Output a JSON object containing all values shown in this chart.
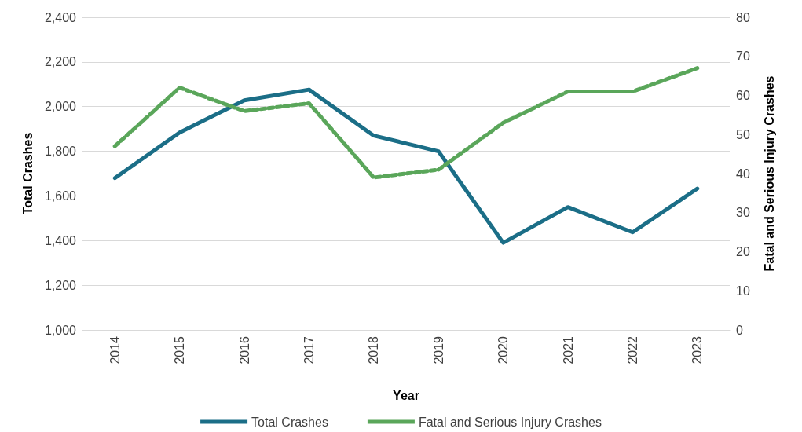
{
  "chart_data": {
    "type": "line",
    "xlabel": "Year",
    "ylabel": "Total Crashes",
    "y2label": "Fatal and Serious Injury Crashes",
    "categories": [
      "2014",
      "2015",
      "2016",
      "2017",
      "2018",
      "2019",
      "2020",
      "2021",
      "2022",
      "2023"
    ],
    "series": [
      {
        "name": "Total Crashes",
        "color": "#1b6e87",
        "line_style": "solid",
        "values": [
          1680,
          1884,
          2028,
          2076,
          1870,
          1800,
          1390,
          1550,
          1437,
          1633
        ]
      },
      {
        "name": "Fatal and Serious Injury Crashes",
        "color": "#5aa65a",
        "line_style": "dashed",
        "axis": "y2",
        "values": [
          47,
          62,
          56,
          58,
          39,
          41,
          53,
          61,
          61,
          67
        ]
      }
    ],
    "ylim": [
      1000,
      2400
    ],
    "yticks": [
      {
        "value": 1000,
        "label": "1,000"
      },
      {
        "value": 1200,
        "label": "1,200"
      },
      {
        "value": 1400,
        "label": "1,400"
      },
      {
        "value": 1600,
        "label": "1,600"
      },
      {
        "value": 1800,
        "label": "1,800"
      },
      {
        "value": 2000,
        "label": "2,000"
      },
      {
        "value": 2200,
        "label": "2,200"
      },
      {
        "value": 2400,
        "label": "2,400"
      }
    ],
    "y2lim": [
      0,
      80
    ],
    "y2ticks": [
      0,
      10,
      20,
      30,
      40,
      50,
      60,
      70,
      80
    ],
    "grid": "y",
    "legend": "bottom",
    "marker": "none"
  }
}
